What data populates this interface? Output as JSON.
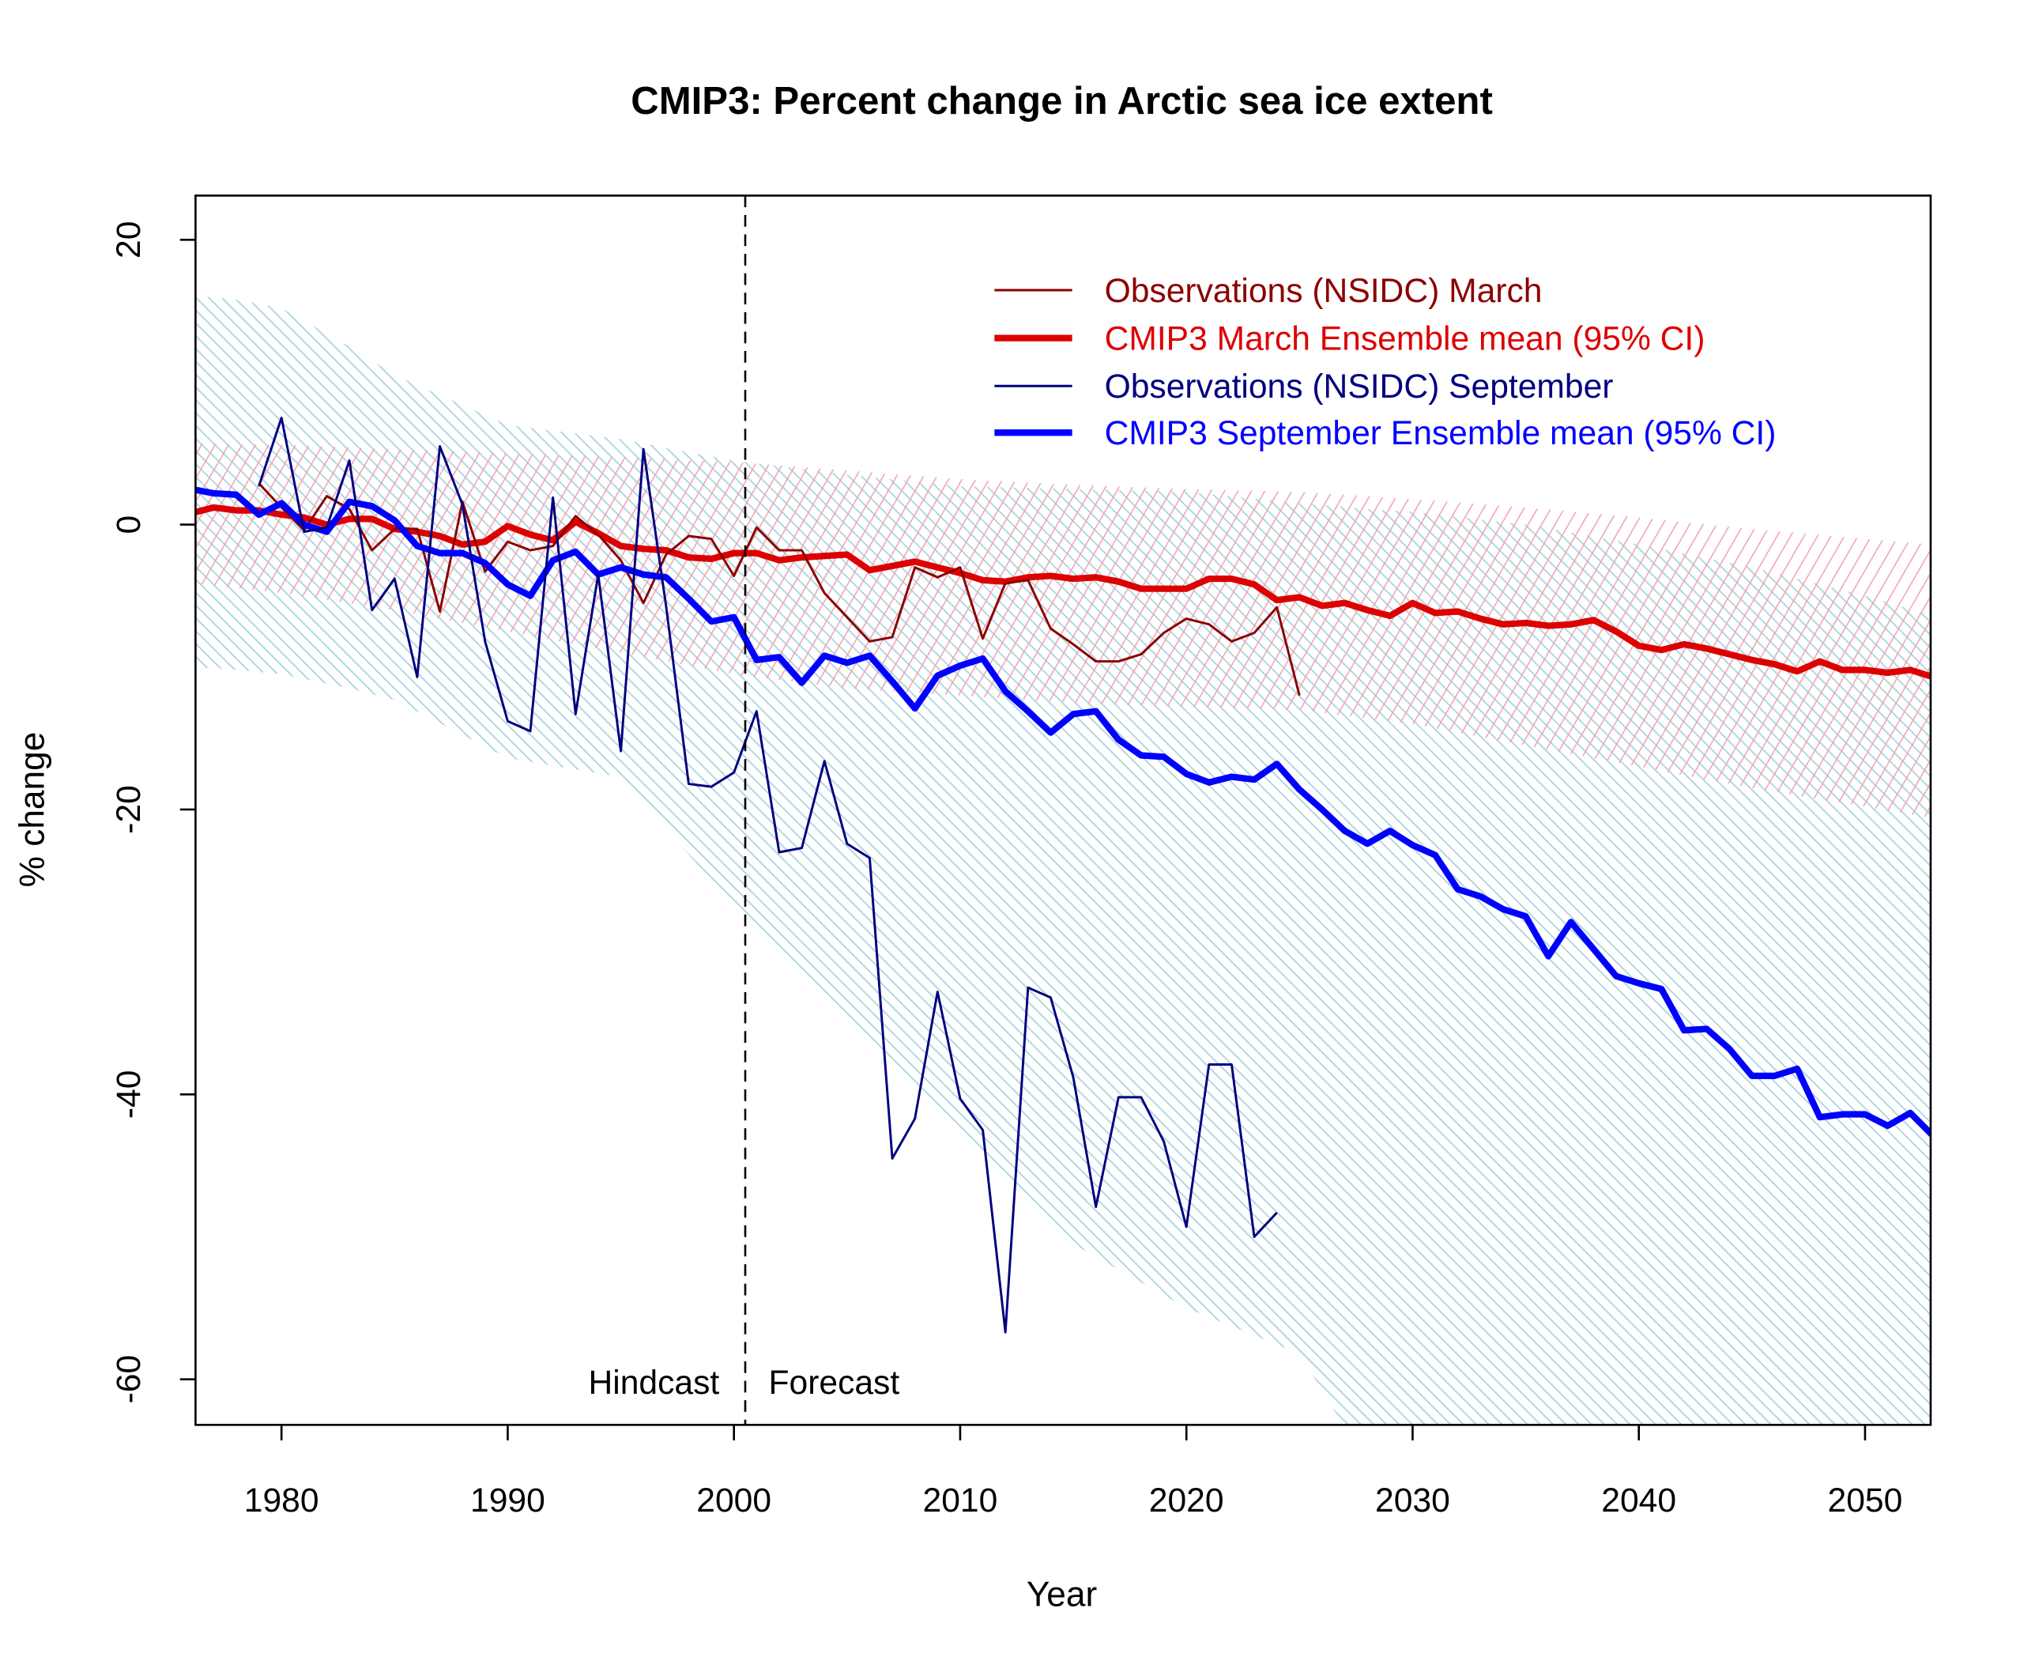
{
  "chart_data": {
    "type": "line",
    "title": "CMIP3: Percent change in Arctic sea ice extent",
    "xlabel": "Year",
    "ylabel": "% change",
    "xlim": [
      1976.2,
      2052.9
    ],
    "ylim": [
      -63.2,
      23.1
    ],
    "x_ticks": [
      1980,
      1990,
      2000,
      2010,
      2020,
      2030,
      2040,
      2050
    ],
    "y_ticks": [
      -60,
      -40,
      -20,
      0,
      20
    ],
    "grid": false,
    "legend_position": "top-right",
    "divider": {
      "x": 2000.5,
      "left_label": "Hindcast",
      "right_label": "Forecast"
    },
    "series": [
      {
        "name": "Observations (NSIDC) March",
        "color": "#8b0000",
        "width": "thin",
        "x": [
          1979,
          1980,
          1981,
          1982,
          1983,
          1984,
          1985,
          1986,
          1987,
          1988,
          1989,
          1990,
          1991,
          1992,
          1993,
          1994,
          1995,
          1996,
          1997,
          1998,
          1999,
          2000,
          2001,
          2002,
          2003,
          2004,
          2005,
          2006,
          2007,
          2008,
          2009,
          2010,
          2011,
          2012,
          2013,
          2014,
          2015,
          2016,
          2017,
          2018,
          2019,
          2020,
          2021,
          2022,
          2023,
          2024,
          2025
        ],
        "y": [
          2.9,
          1.2,
          -0.4,
          2.0,
          1.1,
          -1.8,
          -0.3,
          -0.3,
          -6.1,
          1.6,
          -3.3,
          -1.2,
          -1.8,
          -1.5,
          0.6,
          -0.7,
          -2.5,
          -5.5,
          -2.1,
          -0.8,
          -1.0,
          -3.6,
          -0.2,
          -1.8,
          -1.8,
          -4.8,
          -6.5,
          -8.2,
          -7.9,
          -3.0,
          -3.7,
          -3.0,
          -8.0,
          -4.1,
          -3.9,
          -7.3,
          -8.4,
          -9.6,
          -9.6,
          -9.1,
          -7.6,
          -6.6,
          -7.0,
          -8.2,
          -7.6,
          -5.8,
          -12.0
        ]
      },
      {
        "name": "CMIP3 March Ensemble mean (95% CI)",
        "color": "#dd0000",
        "width": "thick",
        "x": [
          1976,
          1977,
          1978,
          1979,
          1980,
          1981,
          1982,
          1983,
          1984,
          1985,
          1986,
          1987,
          1988,
          1989,
          1990,
          1991,
          1992,
          1993,
          1994,
          1995,
          1996,
          1997,
          1998,
          1999,
          2000,
          2001,
          2002,
          2003,
          2004,
          2005,
          2006,
          2007,
          2008,
          2009,
          2010,
          2011,
          2012,
          2013,
          2014,
          2015,
          2016,
          2017,
          2018,
          2019,
          2020,
          2021,
          2022,
          2023,
          2024,
          2025,
          2026,
          2027,
          2028,
          2029,
          2030,
          2031,
          2032,
          2033,
          2034,
          2035,
          2036,
          2037,
          2038,
          2039,
          2040,
          2041,
          2042,
          2043,
          2044,
          2045,
          2046,
          2047,
          2048,
          2049,
          2050,
          2051,
          2052,
          2053
        ],
        "y": [
          0.8,
          1.2,
          1.0,
          1.0,
          0.7,
          0.5,
          0.0,
          0.4,
          0.4,
          -0.3,
          -0.5,
          -0.8,
          -1.4,
          -1.2,
          -0.1,
          -0.7,
          -1.1,
          0.2,
          -0.6,
          -1.5,
          -1.7,
          -1.8,
          -2.3,
          -2.4,
          -2.0,
          -2.0,
          -2.5,
          -2.3,
          -2.2,
          -2.1,
          -3.2,
          -2.9,
          -2.6,
          -3.0,
          -3.4,
          -3.9,
          -4.0,
          -3.7,
          -3.6,
          -3.8,
          -3.7,
          -4.0,
          -4.5,
          -4.5,
          -4.5,
          -3.8,
          -3.8,
          -4.2,
          -5.3,
          -5.1,
          -5.7,
          -5.5,
          -6.0,
          -6.4,
          -5.5,
          -6.2,
          -6.1,
          -6.6,
          -7.0,
          -6.9,
          -7.1,
          -7.0,
          -6.7,
          -7.5,
          -8.5,
          -8.8,
          -8.4,
          -8.7,
          -9.1,
          -9.5,
          -9.8,
          -10.3,
          -9.6,
          -10.2,
          -10.2,
          -10.4,
          -10.2,
          -10.7
        ],
        "ci": {
          "color": "#f0a8b4",
          "x": [
            1976,
            1980,
            1985,
            1990,
            1995,
            2000,
            2005,
            2010,
            2015,
            2020,
            2025,
            2030,
            2035,
            2040,
            2045,
            2050,
            2053
          ],
          "lower": [
            -4.1,
            -4.8,
            -6.0,
            -7.5,
            -9.0,
            -10.5,
            -11.5,
            -12.0,
            -12.5,
            -12.8,
            -13.0,
            -14.0,
            -15.5,
            -17.0,
            -18.5,
            -19.8,
            -20.6
          ],
          "upper": [
            5.7,
            5.6,
            5.3,
            5.0,
            4.7,
            4.4,
            3.8,
            3.2,
            2.8,
            2.5,
            2.3,
            1.8,
            1.2,
            0.5,
            -0.3,
            -1.0,
            -1.4
          ]
        }
      },
      {
        "name": "Observations (NSIDC) September",
        "color": "#000080",
        "width": "thin",
        "x": [
          1979,
          1980,
          1981,
          1982,
          1983,
          1984,
          1985,
          1986,
          1987,
          1988,
          1989,
          1990,
          1991,
          1992,
          1993,
          1994,
          1995,
          1996,
          1997,
          1998,
          1999,
          2000,
          2001,
          2002,
          2003,
          2004,
          2005,
          2006,
          2007,
          2008,
          2009,
          2010,
          2011,
          2012,
          2013,
          2014,
          2015,
          2016,
          2017,
          2018,
          2019,
          2020,
          2021,
          2022,
          2023,
          2024
        ],
        "y": [
          2.7,
          7.5,
          -0.5,
          -0.2,
          4.5,
          -6.0,
          -3.8,
          -10.7,
          5.5,
          1.4,
          -8.2,
          -13.8,
          -14.5,
          1.9,
          -13.3,
          -3.5,
          -15.9,
          5.3,
          -5.7,
          -18.2,
          -18.4,
          -17.4,
          -13.1,
          -23.0,
          -22.7,
          -16.6,
          -22.4,
          -23.4,
          -44.5,
          -41.7,
          -32.8,
          -40.3,
          -42.5,
          -56.7,
          -32.5,
          -33.2,
          -38.8,
          -47.9,
          -40.2,
          -40.2,
          -43.3,
          -49.3,
          -37.9,
          -37.9,
          -50.0,
          -48.3
        ]
      },
      {
        "name": "CMIP3 September Ensemble mean (95% CI)",
        "color": "#0000ff",
        "width": "thick",
        "x": [
          1976,
          1977,
          1978,
          1979,
          1980,
          1981,
          1982,
          1983,
          1984,
          1985,
          1986,
          1987,
          1988,
          1989,
          1990,
          1991,
          1992,
          1993,
          1994,
          1995,
          1996,
          1997,
          1998,
          1999,
          2000,
          2001,
          2002,
          2003,
          2004,
          2005,
          2006,
          2007,
          2008,
          2009,
          2010,
          2011,
          2012,
          2013,
          2014,
          2015,
          2016,
          2017,
          2018,
          2019,
          2020,
          2021,
          2022,
          2023,
          2024,
          2025,
          2026,
          2027,
          2028,
          2029,
          2030,
          2031,
          2032,
          2033,
          2034,
          2035,
          2036,
          2037,
          2038,
          2039,
          2040,
          2041,
          2042,
          2043,
          2044,
          2045,
          2046,
          2047,
          2048,
          2049,
          2050,
          2051,
          2052,
          2053
        ],
        "y": [
          2.5,
          2.2,
          2.1,
          0.7,
          1.5,
          0.0,
          -0.5,
          1.6,
          1.3,
          0.3,
          -1.5,
          -2.0,
          -2.0,
          -2.7,
          -4.2,
          -5.0,
          -2.5,
          -1.9,
          -3.5,
          -3.0,
          -3.5,
          -3.7,
          -5.2,
          -6.8,
          -6.5,
          -9.5,
          -9.3,
          -11.1,
          -9.2,
          -9.7,
          -9.2,
          -11.0,
          -12.9,
          -10.6,
          -9.9,
          -9.4,
          -11.7,
          -13.1,
          -14.6,
          -13.3,
          -13.1,
          -15.1,
          -16.2,
          -16.3,
          -17.5,
          -18.1,
          -17.7,
          -17.9,
          -16.8,
          -18.6,
          -20.0,
          -21.5,
          -22.4,
          -21.5,
          -22.5,
          -23.2,
          -25.6,
          -26.1,
          -27.0,
          -27.5,
          -30.3,
          -27.9,
          -29.8,
          -31.7,
          -32.2,
          -32.6,
          -35.5,
          -35.4,
          -36.8,
          -38.7,
          -38.7,
          -38.2,
          -41.6,
          -41.4,
          -41.4,
          -42.2,
          -41.3,
          -42.9
        ],
        "ci": {
          "color": "#a8d4e0",
          "x": [
            1976,
            1978,
            1980,
            1983,
            1985,
            1990,
            1995,
            2000,
            2005,
            2010,
            2015,
            2020,
            2025,
            2028,
            2030,
            2035,
            2040,
            2045,
            2050,
            2053
          ],
          "lower": [
            -10.0,
            -10.2,
            -10.5,
            -11.5,
            -12.3,
            -16.4,
            -17.7,
            -26.8,
            -34.5,
            -42.3,
            -50.5,
            -55.0,
            -58.2,
            -66.0,
            -66.0,
            -66.0,
            -66.0,
            -66.0,
            -66.0,
            -66.0
          ],
          "upper": [
            16.1,
            15.8,
            15.2,
            12.5,
            10.5,
            7.0,
            6.0,
            4.5,
            3.5,
            2.7,
            2.5,
            2.3,
            1.5,
            1.1,
            0.9,
            0.0,
            -1.4,
            -3.0,
            -5.0,
            -6.4
          ]
        }
      }
    ]
  }
}
